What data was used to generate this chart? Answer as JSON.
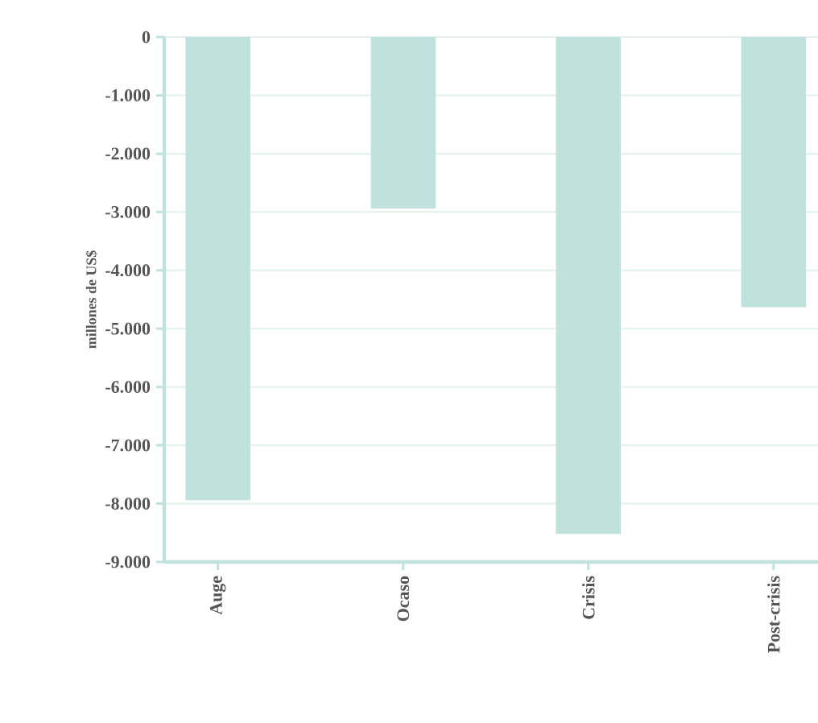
{
  "chart_data": {
    "type": "bar",
    "ylabel": "millones de US$",
    "categories": [
      "Auge",
      "Ocaso",
      "Crisis",
      "Post-crisis"
    ],
    "values": [
      -7940,
      -2940,
      -8520,
      -4630
    ],
    "color": "#c0e2dc",
    "ylim": [
      -9000,
      0
    ],
    "yticks": [
      0,
      {
        "value": -1000,
        "label": "-1.000"
      },
      {
        "value": -2000,
        "label": "-2.000"
      },
      {
        "value": -3000,
        "label": "-3.000"
      },
      {
        "value": -4000,
        "label": "-4.000"
      },
      {
        "value": -5000,
        "label": "-5.000"
      },
      {
        "value": -6000,
        "label": "-6.000"
      },
      {
        "value": -7000,
        "label": "-7.000"
      },
      {
        "value": -8000,
        "label": "-8.000"
      },
      {
        "value": -9000,
        "label": "-9.000"
      }
    ],
    "grid": "y"
  }
}
